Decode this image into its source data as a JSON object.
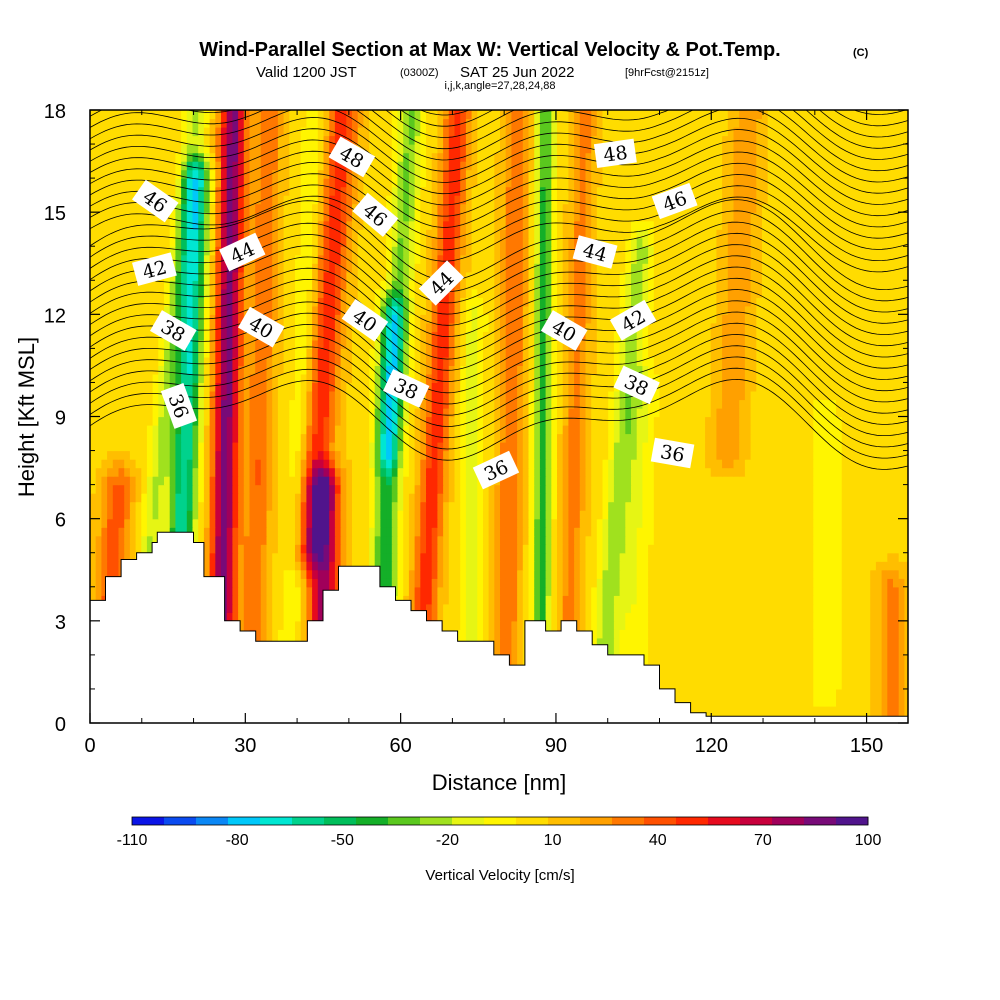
{
  "chart_data": {
    "type": "heatmap",
    "title": "Wind-Parallel Section at Max W: Vertical Velocity & Pot.Temp.",
    "title_mark": "(C)",
    "subtitle": {
      "valid_prefix": "Valid 1200 JST",
      "utc": "(0300Z)",
      "date": "SAT 25 Jun 2022",
      "forecast": "[9hrFcst@2151z]"
    },
    "index_line": "i,j,k,angle=27,28,24,88",
    "xlabel": "Distance [nm]",
    "ylabel": "Height [Kft MSL]",
    "xlim": [
      0,
      158
    ],
    "ylim": [
      0,
      18
    ],
    "xticks": [
      0,
      30,
      60,
      90,
      120,
      150
    ],
    "yticks": [
      0,
      3,
      6,
      9,
      12,
      15,
      18
    ],
    "colorbar": {
      "label": "Vertical Velocity [cm/s]",
      "tick_labels": [
        -110,
        -80,
        -50,
        -20,
        10,
        40,
        70,
        100
      ],
      "colors": [
        "#0a14e6",
        "#0a4bf0",
        "#0a87f5",
        "#00c8fa",
        "#00e6d2",
        "#00d28c",
        "#00be5a",
        "#14af28",
        "#5ac81e",
        "#a0e11e",
        "#e6f514",
        "#fff500",
        "#ffdc00",
        "#ffbe00",
        "#ffa000",
        "#ff7800",
        "#ff5000",
        "#ff2800",
        "#e60a1e",
        "#c8003c",
        "#a0005a",
        "#780a78",
        "#50148c"
      ]
    },
    "terrain_kft": [
      [
        0,
        3.6
      ],
      [
        3,
        4.3
      ],
      [
        6,
        4.8
      ],
      [
        9,
        5.0
      ],
      [
        12,
        5.3
      ],
      [
        13,
        5.6
      ],
      [
        19,
        5.6
      ],
      [
        20,
        5.3
      ],
      [
        22,
        4.3
      ],
      [
        26,
        3.0
      ],
      [
        29,
        2.7
      ],
      [
        32,
        2.4
      ],
      [
        39,
        2.4
      ],
      [
        42,
        3.0
      ],
      [
        45,
        3.9
      ],
      [
        48,
        4.6
      ],
      [
        53,
        4.6
      ],
      [
        56,
        4.0
      ],
      [
        59,
        3.6
      ],
      [
        62,
        3.3
      ],
      [
        65,
        3.0
      ],
      [
        68,
        2.7
      ],
      [
        71,
        2.4
      ],
      [
        78,
        2.0
      ],
      [
        81,
        1.7
      ],
      [
        84,
        3.0
      ],
      [
        88,
        2.7
      ],
      [
        91,
        3.0
      ],
      [
        94,
        2.7
      ],
      [
        97,
        2.3
      ],
      [
        100,
        2.0
      ],
      [
        107,
        1.7
      ],
      [
        110,
        1.0
      ],
      [
        113,
        0.6
      ],
      [
        116,
        0.3
      ],
      [
        119,
        0.2
      ],
      [
        158,
        0.2
      ]
    ],
    "theta_labels": [
      {
        "text": "46",
        "x": 12.5,
        "y": 15.3,
        "angle": 35
      },
      {
        "text": "42",
        "x": 12.5,
        "y": 13.3,
        "angle": -15
      },
      {
        "text": "38",
        "x": 16,
        "y": 11.5,
        "angle": 30
      },
      {
        "text": "36",
        "x": 17,
        "y": 9.3,
        "angle": 70
      },
      {
        "text": "44",
        "x": 29.5,
        "y": 13.8,
        "angle": -25
      },
      {
        "text": "40",
        "x": 33,
        "y": 11.6,
        "angle": 30
      },
      {
        "text": "48",
        "x": 50.5,
        "y": 16.6,
        "angle": 30
      },
      {
        "text": "46",
        "x": 55,
        "y": 14.9,
        "angle": 40
      },
      {
        "text": "40",
        "x": 53,
        "y": 11.8,
        "angle": 35
      },
      {
        "text": "38",
        "x": 61,
        "y": 9.8,
        "angle": 25
      },
      {
        "text": "44",
        "x": 68,
        "y": 12.9,
        "angle": -45
      },
      {
        "text": "36",
        "x": 78.5,
        "y": 7.4,
        "angle": -25
      },
      {
        "text": "40",
        "x": 91.5,
        "y": 11.5,
        "angle": 30
      },
      {
        "text": "44",
        "x": 97.5,
        "y": 13.8,
        "angle": 15
      },
      {
        "text": "48",
        "x": 101.5,
        "y": 16.7,
        "angle": -8
      },
      {
        "text": "42",
        "x": 105,
        "y": 11.8,
        "angle": -30
      },
      {
        "text": "38",
        "x": 105.5,
        "y": 9.9,
        "angle": 25
      },
      {
        "text": "46",
        "x": 113,
        "y": 15.3,
        "angle": -20
      },
      {
        "text": "36",
        "x": 112.5,
        "y": 7.9,
        "angle": 10
      }
    ]
  }
}
